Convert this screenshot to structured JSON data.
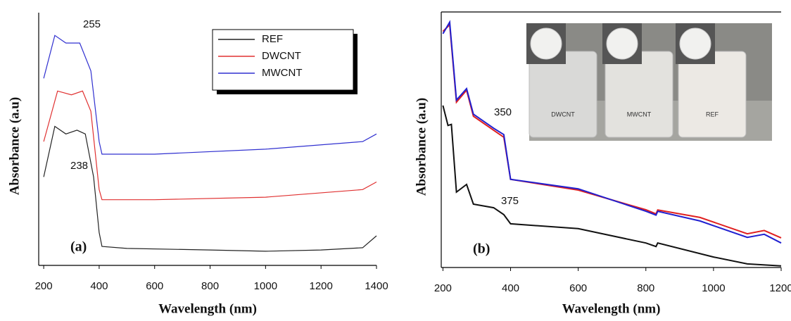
{
  "chart_data": [
    {
      "type": "line",
      "xlabel": "Wavelength (nm)",
      "ylabel": "Absorbance (a.u)",
      "xlim": [
        182,
        1400
      ],
      "xticks": [
        200,
        400,
        600,
        800,
        1000,
        1200,
        1400
      ],
      "ylim": [
        0,
        10
      ],
      "legend": "upper right",
      "annotations": [
        "255",
        "238",
        "(a)"
      ],
      "series": [
        {
          "name": "REF",
          "color": "#222222",
          "x": [
            200,
            240,
            280,
            320,
            350,
            380,
            400,
            410,
            500,
            800,
            1000,
            1200,
            1350,
            1400
          ],
          "values": [
            3.5,
            5.5,
            5.2,
            5.35,
            5.2,
            3.5,
            1.3,
            0.75,
            0.67,
            0.61,
            0.56,
            0.61,
            0.7,
            1.17
          ]
        },
        {
          "name": "DWCNT",
          "color": "#e03030",
          "x": [
            200,
            250,
            300,
            340,
            370,
            400,
            410,
            600,
            1000,
            1350,
            1400
          ],
          "values": [
            4.9,
            6.9,
            6.75,
            6.9,
            6.1,
            3.0,
            2.6,
            2.6,
            2.7,
            3.0,
            3.3
          ]
        },
        {
          "name": "MWCNT",
          "color": "#3030d0",
          "x": [
            200,
            240,
            280,
            330,
            370,
            400,
            410,
            600,
            1000,
            1350,
            1400
          ],
          "values": [
            7.4,
            9.1,
            8.8,
            8.8,
            7.7,
            4.9,
            4.4,
            4.4,
            4.6,
            4.9,
            5.2
          ]
        }
      ]
    },
    {
      "type": "line",
      "xlabel": "Wavelength (nm)",
      "ylabel": "Absorbance (a.u)",
      "xlim": [
        195,
        1200
      ],
      "xticks": [
        200,
        400,
        600,
        800,
        1000,
        1200
      ],
      "ylim": [
        0,
        10
      ],
      "annotations": [
        "350",
        "375",
        "(b)"
      ],
      "inset_labels": [
        "DWCNT",
        "MWCNT",
        "REF"
      ],
      "series": [
        {
          "color": "#111111",
          "x": [
            200,
            215,
            225,
            240,
            270,
            290,
            350,
            380,
            400,
            600,
            800,
            830,
            835,
            1000,
            1100,
            1200
          ],
          "values": [
            6.34,
            5.56,
            5.6,
            2.95,
            3.25,
            2.48,
            2.34,
            2.07,
            1.71,
            1.52,
            0.96,
            0.82,
            0.96,
            0.41,
            0.14,
            0.06
          ]
        },
        {
          "color": "#e02020",
          "x": [
            200,
            220,
            240,
            270,
            290,
            350,
            380,
            400,
            600,
            800,
            830,
            835,
            960,
            1100,
            1150,
            1200
          ],
          "values": [
            9.24,
            9.5,
            6.47,
            6.94,
            5.92,
            5.37,
            5.1,
            3.45,
            3.03,
            2.26,
            2.1,
            2.25,
            1.96,
            1.32,
            1.45,
            1.16
          ]
        },
        {
          "color": "#2020d0",
          "x": [
            200,
            220,
            240,
            270,
            290,
            350,
            380,
            400,
            600,
            800,
            830,
            835,
            960,
            1100,
            1150,
            1200
          ],
          "values": [
            9.15,
            9.6,
            6.55,
            7.0,
            6.0,
            5.45,
            5.2,
            3.45,
            3.08,
            2.2,
            2.05,
            2.2,
            1.82,
            1.18,
            1.3,
            0.96
          ]
        }
      ]
    }
  ]
}
